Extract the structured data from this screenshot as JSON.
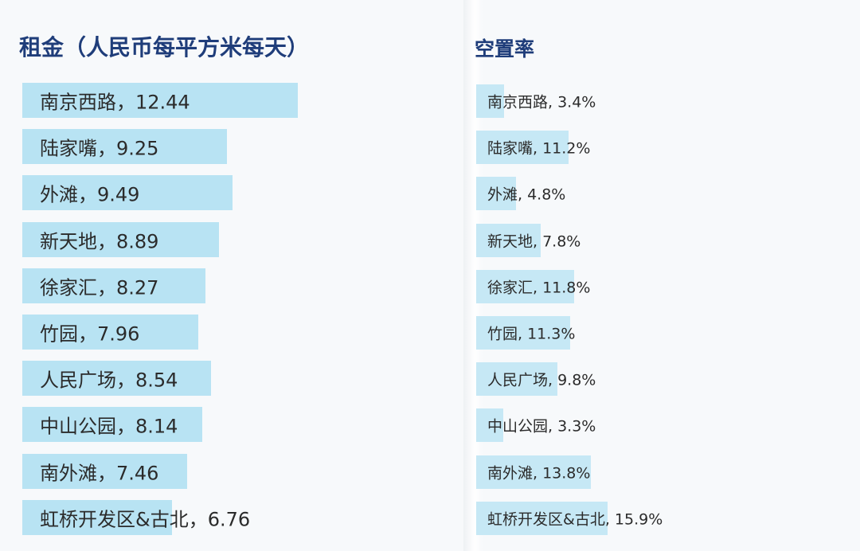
{
  "chart_data": [
    {
      "type": "bar",
      "orientation": "horizontal",
      "title": "租金（人民币每平方米每天）",
      "categories": [
        "南京西路",
        "陆家嘴",
        "外滩",
        "新天地",
        "徐家汇",
        "竹园",
        "人民广场",
        "中山公园",
        "南外滩",
        "虹桥开发区&古北"
      ],
      "values": [
        12.44,
        9.25,
        9.49,
        8.89,
        8.27,
        7.96,
        8.54,
        8.14,
        7.46,
        6.76
      ],
      "data_labels": [
        "南京西路，12.44",
        "陆家嘴，9.25",
        "外滩，9.49",
        "新天地，8.89",
        "徐家汇，8.27",
        "竹园，7.96",
        "人民广场，8.54",
        "中山公园，8.14",
        "南外滩，7.46",
        "虹桥开发区&古北，6.76"
      ],
      "xlim": [
        0,
        15.5
      ],
      "xlabel": "",
      "ylabel": "",
      "grid": false,
      "bar_color": "#b8e3f3"
    },
    {
      "type": "bar",
      "orientation": "horizontal",
      "title": "空置率",
      "categories": [
        "南京西路",
        "陆家嘴",
        "外滩",
        "新天地",
        "徐家汇",
        "竹园",
        "人民广场",
        "中山公园",
        "南外滩",
        "虹桥开发区&古北"
      ],
      "values": [
        3.4,
        11.2,
        4.8,
        7.8,
        11.8,
        11.3,
        9.8,
        3.3,
        13.8,
        15.9
      ],
      "data_labels": [
        "南京西路, 3.4%",
        "陆家嘴, 11.2%",
        "外滩, 4.8%",
        "新天地, 7.8%",
        "徐家汇, 11.8%",
        "竹园, 11.3%",
        "人民广场, 9.8%",
        "中山公园, 3.3%",
        "南外滩, 13.8%",
        "虹桥开发区&古北, 15.9%"
      ],
      "xlim": [
        0,
        22
      ],
      "xlabel": "",
      "ylabel": "",
      "grid": false,
      "bar_color": "#c6e8f5"
    }
  ],
  "colors": {
    "title": "#1f3d7a",
    "label": "#2b2b2b",
    "background": "#f7f9fb"
  }
}
